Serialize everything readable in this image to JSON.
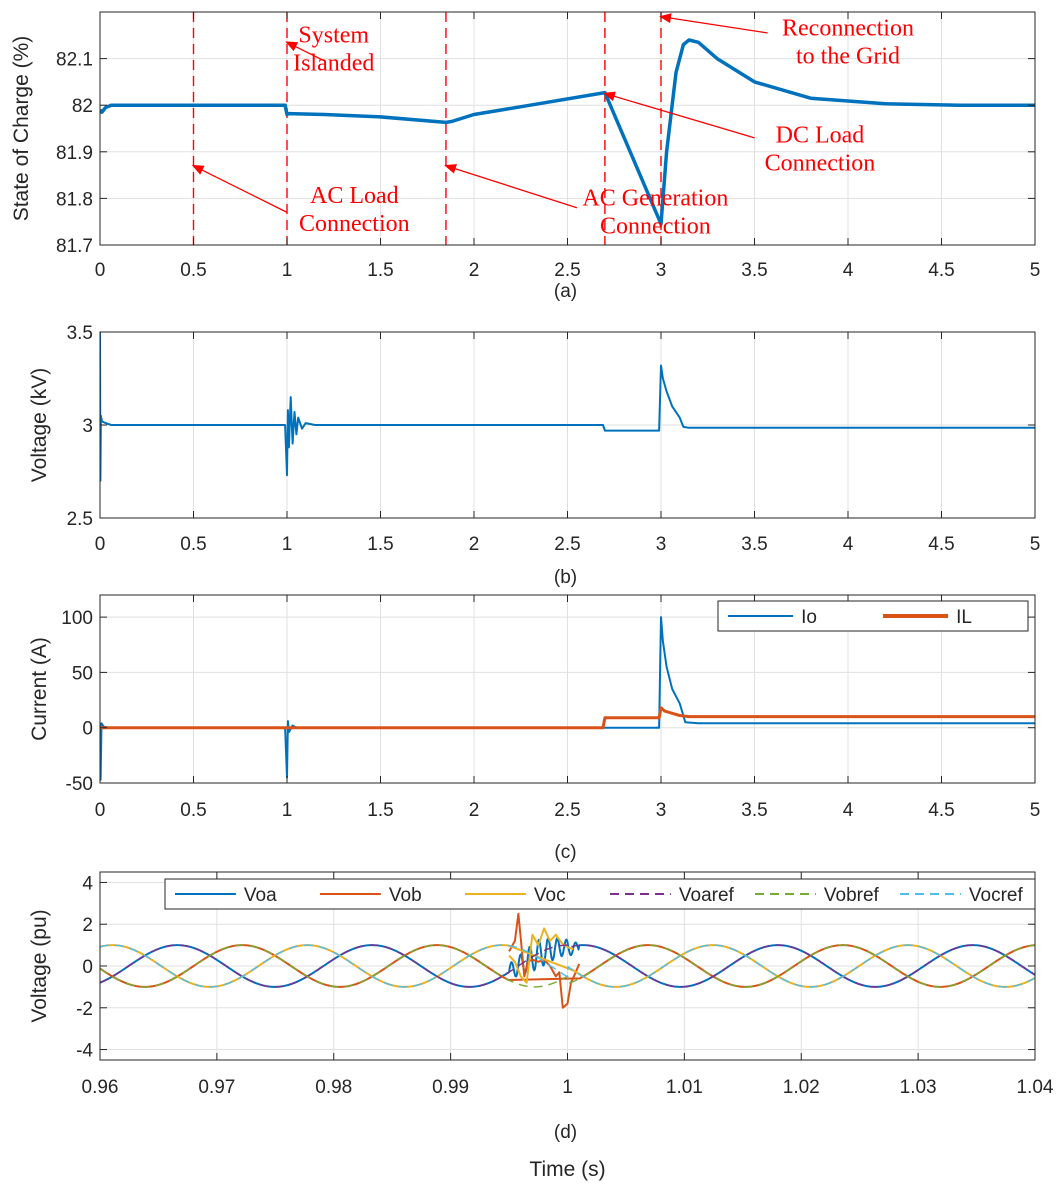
{
  "chart_data": [
    {
      "id": "a",
      "type": "line",
      "panel_label": "(a)",
      "title": "",
      "xlabel": "",
      "ylabel": "State of Charge (%)",
      "xlim": [
        0,
        5
      ],
      "ylim": [
        81.7,
        82.2
      ],
      "xticks": [
        0,
        0.5,
        1,
        1.5,
        2,
        2.5,
        3,
        3.5,
        4,
        4.5,
        5
      ],
      "xtick_labels": [
        "0",
        "0.5",
        "1",
        "1.5",
        "2",
        "2.5",
        "3",
        "3.5",
        "4",
        "4.5",
        "5"
      ],
      "yticks": [
        81.7,
        81.8,
        81.9,
        82,
        82.1
      ],
      "ytick_labels": [
        "81.7",
        "81.8",
        "81.9",
        "82",
        "82.1"
      ],
      "grid": true,
      "series": [
        {
          "color": "#0072BD",
          "x": [
            0,
            0.01,
            0.03,
            0.06,
            0.1,
            0.2,
            0.5,
            0.99,
            1.0,
            1.01,
            1.2,
            1.5,
            1.85,
            1.88,
            2.0,
            2.3,
            2.7,
            3.0,
            3.03,
            3.08,
            3.12,
            3.15,
            3.2,
            3.3,
            3.5,
            3.8,
            4.2,
            4.6,
            5.0
          ],
          "y": [
            81.99,
            81.985,
            81.995,
            82.0,
            82.0,
            82.0,
            82.0,
            82.0,
            81.98,
            81.982,
            81.98,
            81.975,
            81.963,
            81.965,
            81.98,
            82.0,
            82.027,
            81.745,
            81.9,
            82.07,
            82.13,
            82.14,
            82.135,
            82.1,
            82.05,
            82.015,
            82.003,
            82.0,
            82.0
          ]
        }
      ],
      "event_lines": [
        0.5,
        1,
        1.85,
        2.7,
        3
      ],
      "event_line_color": "#FF0000",
      "annotations": [
        {
          "lines": [
            "System",
            "Islanded"
          ],
          "text_x": 1.25,
          "text_y": 82.135,
          "arrow_x": 1.0,
          "arrow_y": 82.135,
          "tail_x": 1.2,
          "tail_y": 82.095
        },
        {
          "lines": [
            "AC Load",
            "Connection"
          ],
          "text_x": 1.36,
          "text_y": 81.79,
          "arrow_x": 0.5,
          "arrow_y": 81.87,
          "tail_x": 1.0,
          "tail_y": 81.77
        },
        {
          "lines": [
            "AC Generation",
            "Connection"
          ],
          "text_x": 2.97,
          "text_y": 81.785,
          "arrow_x": 1.85,
          "arrow_y": 81.87,
          "tail_x": 2.55,
          "tail_y": 81.78
        },
        {
          "lines": [
            "DC Load",
            "Connection"
          ],
          "text_x": 3.85,
          "text_y": 81.92,
          "arrow_x": 2.7,
          "arrow_y": 82.025,
          "tail_x": 3.5,
          "tail_y": 81.93
        },
        {
          "lines": [
            "Reconnection",
            "to the Grid"
          ],
          "text_x": 4.0,
          "text_y": 82.15,
          "arrow_x": 3.0,
          "arrow_y": 82.19,
          "tail_x": 3.57,
          "tail_y": 82.155
        }
      ]
    },
    {
      "id": "b",
      "type": "line",
      "panel_label": "(b)",
      "title": "",
      "xlabel": "",
      "ylabel": "Voltage (kV)",
      "xlim": [
        0,
        5
      ],
      "ylim": [
        2.5,
        3.5
      ],
      "xticks": [
        0,
        0.5,
        1,
        1.5,
        2,
        2.5,
        3,
        3.5,
        4,
        4.5,
        5
      ],
      "xtick_labels": [
        "0",
        "0.5",
        "1",
        "1.5",
        "2",
        "2.5",
        "3",
        "3.5",
        "4",
        "4.5",
        "5"
      ],
      "yticks": [
        2.5,
        3,
        3.5
      ],
      "ytick_labels": [
        "2.5",
        "3",
        "3.5"
      ],
      "grid": true,
      "series": [
        {
          "color": "#0072BD",
          "x": [
            0,
            0.002,
            0.005,
            0.01,
            0.03,
            0.06,
            0.1,
            0.5,
            0.99,
            1.0,
            1.005,
            1.01,
            1.02,
            1.03,
            1.04,
            1.05,
            1.06,
            1.08,
            1.1,
            1.15,
            1.5,
            2.0,
            2.5,
            2.69,
            2.7,
            2.72,
            2.99,
            3.0,
            3.01,
            3.03,
            3.06,
            3.1,
            3.12,
            3.15,
            3.3,
            4.0,
            5.0
          ],
          "y": [
            3.5,
            2.7,
            3.05,
            3.02,
            3.01,
            3.0,
            3.0,
            3.0,
            3.0,
            2.73,
            3.08,
            2.88,
            3.15,
            2.9,
            3.07,
            2.95,
            3.04,
            2.98,
            3.01,
            3.0,
            3.0,
            3.0,
            3.0,
            3.0,
            2.97,
            2.97,
            2.97,
            3.32,
            3.25,
            3.18,
            3.1,
            3.04,
            2.99,
            2.985,
            2.985,
            2.985,
            2.985
          ]
        }
      ]
    },
    {
      "id": "c",
      "type": "line",
      "panel_label": "(c)",
      "title": "",
      "xlabel": "",
      "ylabel": "Current (A)",
      "xlim": [
        0,
        5
      ],
      "ylim": [
        -50,
        120
      ],
      "xticks": [
        0,
        0.5,
        1,
        1.5,
        2,
        2.5,
        3,
        3.5,
        4,
        4.5,
        5
      ],
      "xtick_labels": [
        "0",
        "0.5",
        "1",
        "1.5",
        "2",
        "2.5",
        "3",
        "3.5",
        "4",
        "4.5",
        "5"
      ],
      "yticks": [
        -50,
        0,
        50,
        100
      ],
      "ytick_labels": [
        "-50",
        "0",
        "50",
        "100"
      ],
      "grid": true,
      "legend": {
        "placement": "top-right",
        "entries": [
          "Io",
          "IL"
        ]
      },
      "series": [
        {
          "name": "Io",
          "color": "#0072BD",
          "x": [
            0,
            0.003,
            0.008,
            0.02,
            0.05,
            0.99,
            1.0,
            1.005,
            1.01,
            1.03,
            1.05,
            2.69,
            2.7,
            2.99,
            3.0,
            3.01,
            3.03,
            3.06,
            3.1,
            3.13,
            3.2,
            4.0,
            5.0
          ],
          "y": [
            0,
            -47,
            4,
            1,
            0,
            0,
            -45,
            6,
            -4,
            2,
            0,
            0,
            0,
            0,
            100,
            78,
            55,
            35,
            22,
            5,
            4,
            4,
            4
          ]
        },
        {
          "name": "IL",
          "color": "#D95319",
          "x": [
            0,
            0.5,
            1.0,
            1.5,
            2.0,
            2.5,
            2.69,
            2.7,
            2.72,
            2.99,
            3.0,
            3.02,
            3.06,
            3.1,
            3.15,
            3.5,
            4.0,
            5.0
          ],
          "y": [
            0,
            0,
            0,
            0,
            0,
            0,
            0,
            9,
            9,
            9,
            18,
            15,
            13,
            11,
            10,
            10,
            10,
            10
          ]
        }
      ]
    },
    {
      "id": "d",
      "type": "line",
      "panel_label": "(d)",
      "title": "",
      "xlabel": "Time (s)",
      "ylabel": "Voltage (pu)",
      "xlim": [
        0.96,
        1.04
      ],
      "ylim": [
        -4.5,
        4.5
      ],
      "xticks": [
        0.96,
        0.97,
        0.98,
        0.99,
        1,
        1.01,
        1.02,
        1.03,
        1.04
      ],
      "xtick_labels": [
        "0.96",
        "0.97",
        "0.98",
        "0.99",
        "1",
        "1.01",
        "1.02",
        "1.03",
        "1.04"
      ],
      "yticks": [
        -4,
        -2,
        0,
        2,
        4
      ],
      "ytick_labels": [
        "-4",
        "-2",
        "0",
        "2",
        "4"
      ],
      "grid": true,
      "legend": {
        "placement": "top-right",
        "entries": [
          "Voa",
          "Vob",
          "Voc",
          "Voaref",
          "Vobref",
          "Vocref"
        ]
      },
      "sine": {
        "frequency_hz": 60,
        "amplitude_pu": 1,
        "phase_at_0_96_deg": [
          -53,
          -173,
          67
        ],
        "phase_after_event_shift_deg": -30
      },
      "transient_window_s": [
        0.995,
        1.0
      ],
      "series": [
        {
          "name": "Voa",
          "color": "#0072BD",
          "dash": "solid"
        },
        {
          "name": "Vob",
          "color": "#D95319",
          "dash": "solid",
          "transient_x": [
            0.995,
            0.9955,
            0.9958,
            0.996,
            0.9963,
            0.9966,
            0.997,
            0.9975,
            0.998,
            0.9985,
            0.999,
            0.9993,
            0.9996,
            1.0,
            1.0003,
            1.0007,
            1.001
          ],
          "transient_y": [
            0.7,
            1.2,
            2.5,
            1.3,
            -0.5,
            0.2,
            0.3,
            0.2,
            0.3,
            0.0,
            -0.5,
            -0.3,
            -2.0,
            -1.8,
            -0.8,
            -0.3,
            0.1
          ]
        },
        {
          "name": "Voc",
          "color": "#EDB120",
          "dash": "solid",
          "transient_x": [
            0.995,
            0.9955,
            0.996,
            0.9965,
            0.997,
            0.9975,
            0.998,
            0.9985,
            0.999,
            0.9995,
            1.0,
            1.0005
          ],
          "transient_y": [
            0.5,
            0.2,
            -0.5,
            -0.8,
            1.5,
            1.0,
            1.8,
            1.2,
            1.5,
            1.1,
            0.9,
            0.8
          ]
        },
        {
          "name": "Voaref",
          "color": "#7E2F8E",
          "dash": "dashed"
        },
        {
          "name": "Vobref",
          "color": "#77AC30",
          "dash": "dashed"
        },
        {
          "name": "Vocref",
          "color": "#4DBEEE",
          "dash": "dashed"
        }
      ]
    }
  ]
}
